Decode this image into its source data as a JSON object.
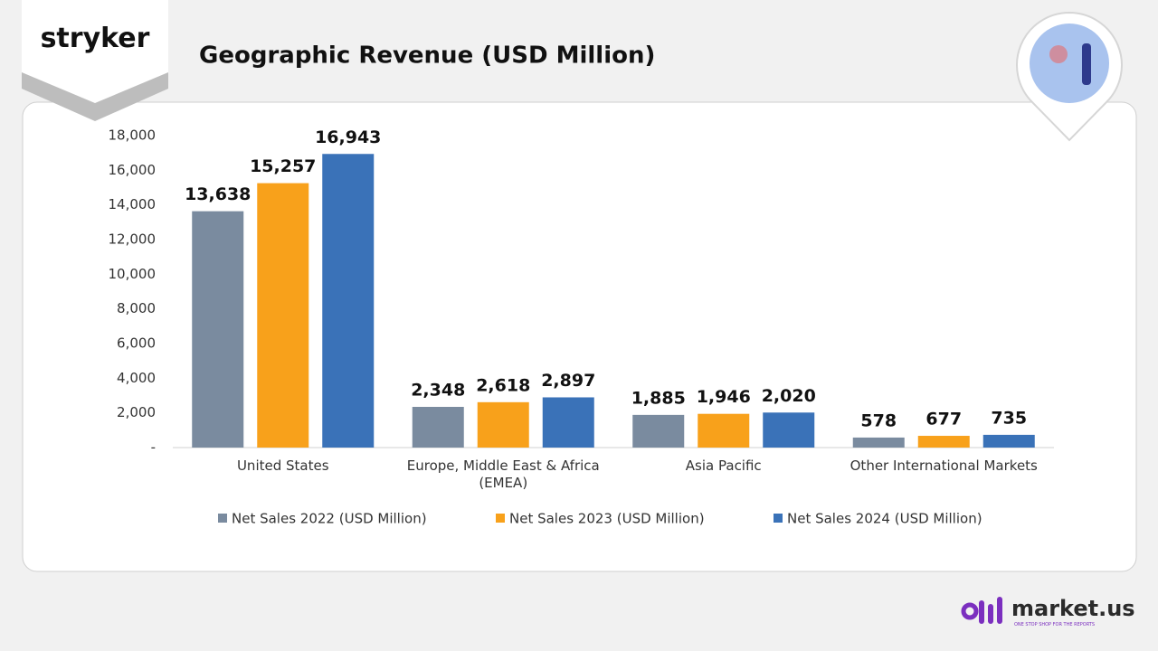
{
  "brand": "stryker",
  "footer": {
    "logo": "market.us",
    "tagline": "ONE STOP SHOP FOR THE REPORTS"
  },
  "chart_data": {
    "type": "bar",
    "title": "Geographic Revenue (USD Million)",
    "categories": [
      "United States",
      "Europe, Middle East & Africa (EMEA)",
      "Asia Pacific",
      "Other International Markets"
    ],
    "series": [
      {
        "name": "Net Sales 2022 (USD Million)",
        "color": "#7a8b9f",
        "values": [
          13638,
          2348,
          1885,
          578
        ],
        "value_labels": [
          "13,638",
          "2,348",
          "1,885",
          "578"
        ]
      },
      {
        "name": "Net Sales 2023 (USD Million)",
        "color": "#f8a11b",
        "values": [
          15257,
          2618,
          1946,
          677
        ],
        "value_labels": [
          "15,257",
          "2,618",
          "1,946",
          "677"
        ]
      },
      {
        "name": "Net Sales 2024 (USD Million)",
        "color": "#3a72b8",
        "values": [
          16943,
          2897,
          2020,
          735
        ],
        "value_labels": [
          "16,943",
          "2,897",
          "2,020",
          "735"
        ]
      }
    ],
    "ylim": [
      0,
      18000
    ],
    "yticks": [
      {
        "value": 0,
        "label": "-"
      },
      {
        "value": 2000,
        "label": "2,000"
      },
      {
        "value": 4000,
        "label": "4,000"
      },
      {
        "value": 6000,
        "label": "6,000"
      },
      {
        "value": 8000,
        "label": "8,000"
      },
      {
        "value": 10000,
        "label": "10,000"
      },
      {
        "value": 12000,
        "label": "12,000"
      },
      {
        "value": 14000,
        "label": "14,000"
      },
      {
        "value": 16000,
        "label": "16,000"
      },
      {
        "value": 18000,
        "label": "18,000"
      }
    ],
    "grid": false,
    "legend": "bottom"
  }
}
